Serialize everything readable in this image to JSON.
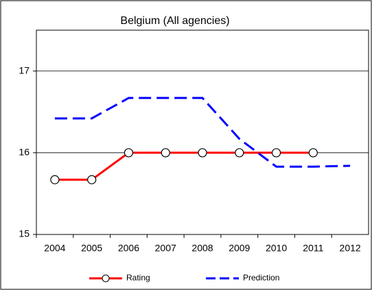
{
  "chart_data": {
    "type": "line",
    "title": "Belgium (All agencies)",
    "categories": [
      "2004",
      "2005",
      "2006",
      "2007",
      "2008",
      "2009",
      "2010",
      "2011",
      "2012"
    ],
    "series": [
      {
        "name": "Rating",
        "color": "#ff0000",
        "values": [
          15.67,
          15.67,
          16,
          16,
          16,
          16,
          16,
          16,
          null
        ]
      },
      {
        "name": "Prediction",
        "color": "#0000ff",
        "values": [
          16.42,
          16.42,
          16.67,
          16.67,
          16.67,
          16.17,
          15.83,
          15.83,
          15.84
        ]
      }
    ],
    "ylim": [
      15,
      17.5
    ],
    "yticks": [
      15,
      16,
      17
    ],
    "grid": true
  }
}
